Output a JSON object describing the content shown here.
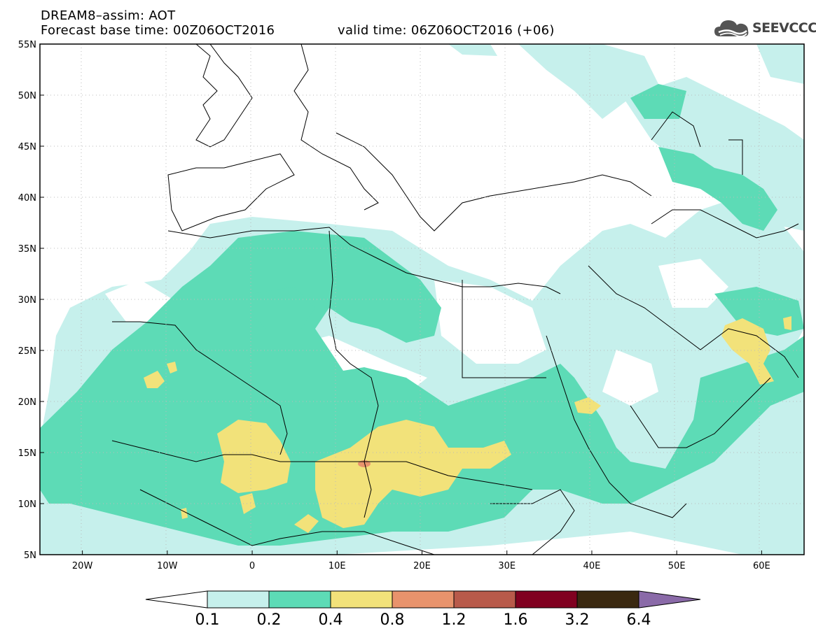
{
  "title": {
    "line1": "DREAM8–assim: AOT",
    "line2": "Forecast base time: 00Z06OCT2016",
    "valid": "valid time: 06Z06OCT2016 (+06)"
  },
  "logo": {
    "text": "SEEVCCC",
    "icon": "cloud-icon"
  },
  "map": {
    "lon_range": [
      -25,
      65
    ],
    "lat_range": [
      5,
      55
    ],
    "lat_ticks": [
      "5N",
      "10N",
      "15N",
      "20N",
      "25N",
      "30N",
      "35N",
      "40N",
      "45N",
      "50N",
      "55N"
    ],
    "lon_ticks": [
      "20W",
      "10W",
      "0",
      "10E",
      "20E",
      "30E",
      "40E",
      "50E",
      "60E"
    ],
    "grid": "dotted"
  },
  "colorbar": {
    "labels": [
      "0.1",
      "0.2",
      "0.4",
      "0.8",
      "1.2",
      "1.6",
      "3.2",
      "6.4"
    ],
    "colors": [
      "#c6f0ec",
      "#5ddbb6",
      "#f2e27a",
      "#e8936c",
      "#b85a4a",
      "#800020",
      "#3a2810",
      "#8a6aa8"
    ],
    "under_color": "#ffffff"
  }
}
